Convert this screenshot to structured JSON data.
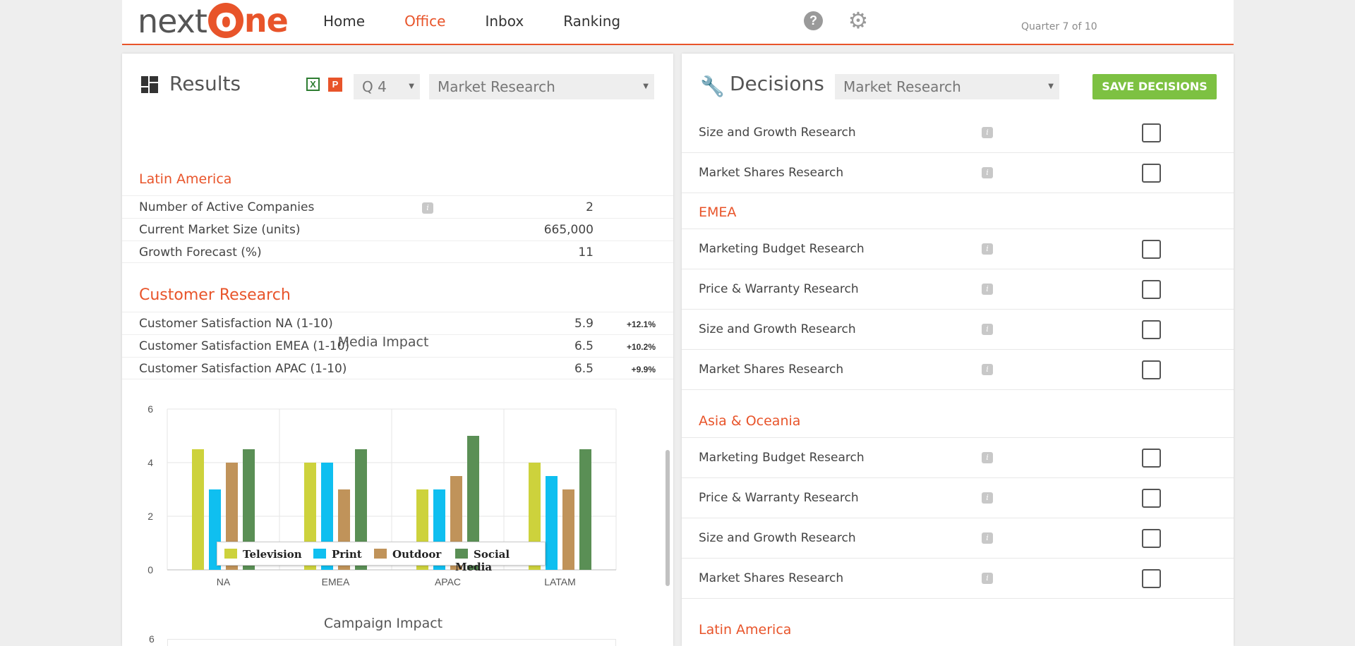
{
  "header": {
    "logo_next": "next",
    "logo_o": "o",
    "logo_ne": "ne",
    "nav": [
      "Home",
      "Office",
      "Inbox",
      "Ranking"
    ],
    "active_nav": "Office",
    "quarter_text": "Quarter 7 of 10"
  },
  "results": {
    "title": "Results",
    "quarter_select": "Q 4",
    "topic_select": "Market Research",
    "latin_america": {
      "heading": "Latin America",
      "rows": [
        {
          "label": "Number of Active Companies",
          "value": "2",
          "info": true
        },
        {
          "label": "Current Market Size (units)",
          "value": "665,000"
        },
        {
          "label": "Growth Forecast (%)",
          "value": "11"
        }
      ]
    },
    "customer_research": {
      "heading": "Customer Research",
      "rows": [
        {
          "label": "Customer Satisfaction NA (1-10)",
          "value": "5.9",
          "change": "+12.1%"
        },
        {
          "label": "Customer Satisfaction EMEA (1-10)",
          "value": "6.5",
          "change": "+10.2%"
        },
        {
          "label": "Customer Satisfaction APAC (1-10)",
          "value": "6.5",
          "change": "+9.9%"
        }
      ]
    },
    "second_chart_title": "Campaign Impact",
    "second_chart_first_tick": "6"
  },
  "chart_data": {
    "type": "bar",
    "title": "Media Impact",
    "categories": [
      "NA",
      "EMEA",
      "APAC",
      "LATAM"
    ],
    "series": [
      {
        "name": "Television",
        "color": "#cdd23c",
        "values": [
          4.5,
          4,
          3,
          4
        ]
      },
      {
        "name": "Print",
        "color": "#0fbff0",
        "values": [
          3,
          4,
          3,
          3.5
        ]
      },
      {
        "name": "Outdoor",
        "color": "#c0935a",
        "values": [
          4,
          3,
          3.5,
          3
        ]
      },
      {
        "name": "Social Media",
        "color": "#5a8f55",
        "values": [
          4.5,
          4.5,
          5,
          4.5
        ]
      }
    ],
    "ylim": [
      0,
      6
    ],
    "yticks": [
      0,
      2,
      4,
      6
    ],
    "grid": true,
    "legend": "bottom"
  },
  "decisions": {
    "title": "Decisions",
    "topic_select": "Market Research",
    "save_label": "SAVE DECISIONS",
    "top_rows": [
      "Size and Growth Research",
      "Market Shares Research"
    ],
    "sections": [
      {
        "heading": "EMEA",
        "rows": [
          "Marketing Budget Research",
          "Price & Warranty Research",
          "Size and Growth Research",
          "Market Shares Research"
        ]
      },
      {
        "heading": "Asia & Oceania",
        "rows": [
          "Marketing Budget Research",
          "Price & Warranty Research",
          "Size and Growth Research",
          "Market Shares Research"
        ]
      },
      {
        "heading": "Latin America",
        "rows": []
      }
    ]
  },
  "colors": {
    "accent": "#e8542a",
    "save_button": "#7dc142"
  },
  "icons": [
    "help-icon",
    "gear-icon",
    "dashboard-icon",
    "excel-icon",
    "powerpoint-icon",
    "wrench-icon",
    "info-icon",
    "dropdown-caret-icon"
  ]
}
